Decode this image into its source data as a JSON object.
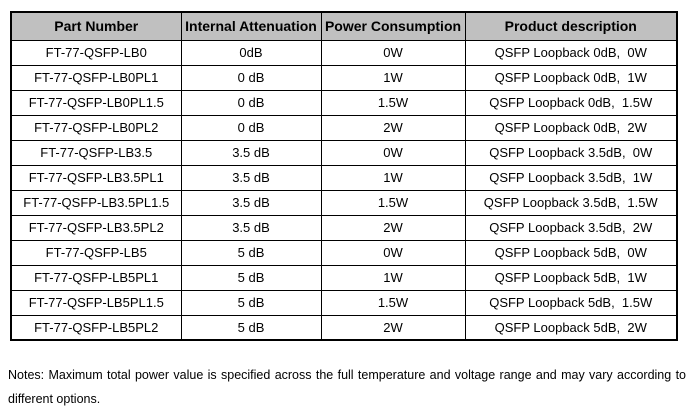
{
  "table": {
    "header_background": "#c0c0c0",
    "border_color": "#000000",
    "columns": [
      "Part Number",
      "Internal Attenuation",
      "Power Consumption",
      "Product description"
    ],
    "rows": [
      {
        "part_number": "FT-77-QSFP-LB0",
        "internal_attenuation": "0dB",
        "power_consumption": "0W",
        "product_description": "QSFP Loopback 0dB,  0W"
      },
      {
        "part_number": "FT-77-QSFP-LB0PL1",
        "internal_attenuation": "0 dB",
        "power_consumption": "1W",
        "product_description": "QSFP Loopback 0dB,  1W"
      },
      {
        "part_number": "FT-77-QSFP-LB0PL1.5",
        "internal_attenuation": "0 dB",
        "power_consumption": "1.5W",
        "product_description": "QSFP Loopback 0dB,  1.5W"
      },
      {
        "part_number": "FT-77-QSFP-LB0PL2",
        "internal_attenuation": "0 dB",
        "power_consumption": "2W",
        "product_description": "QSFP Loopback 0dB,  2W"
      },
      {
        "part_number": "FT-77-QSFP-LB3.5",
        "internal_attenuation": "3.5 dB",
        "power_consumption": "0W",
        "product_description": "QSFP Loopback 3.5dB,  0W"
      },
      {
        "part_number": "FT-77-QSFP-LB3.5PL1",
        "internal_attenuation": "3.5 dB",
        "power_consumption": "1W",
        "product_description": "QSFP Loopback 3.5dB,  1W"
      },
      {
        "part_number": "FT-77-QSFP-LB3.5PL1.5",
        "internal_attenuation": "3.5 dB",
        "power_consumption": "1.5W",
        "product_description": "QSFP Loopback 3.5dB,  1.5W"
      },
      {
        "part_number": "FT-77-QSFP-LB3.5PL2",
        "internal_attenuation": "3.5 dB",
        "power_consumption": "2W",
        "product_description": "QSFP Loopback 3.5dB,  2W"
      },
      {
        "part_number": "FT-77-QSFP-LB5",
        "internal_attenuation": "5 dB",
        "power_consumption": "0W",
        "product_description": "QSFP Loopback 5dB,  0W"
      },
      {
        "part_number": "FT-77-QSFP-LB5PL1",
        "internal_attenuation": "5 dB",
        "power_consumption": "1W",
        "product_description": "QSFP Loopback 5dB,  1W"
      },
      {
        "part_number": "FT-77-QSFP-LB5PL1.5",
        "internal_attenuation": "5 dB",
        "power_consumption": "1.5W",
        "product_description": "QSFP Loopback 5dB,  1.5W"
      },
      {
        "part_number": "FT-77-QSFP-LB5PL2",
        "internal_attenuation": "5 dB",
        "power_consumption": "2W",
        "product_description": "QSFP Loopback 5dB,  2W"
      }
    ]
  },
  "notes": {
    "line1": "Notes: Maximum total power value is specified across the full temperature and voltage range and may vary according to",
    "line2": "different options."
  }
}
